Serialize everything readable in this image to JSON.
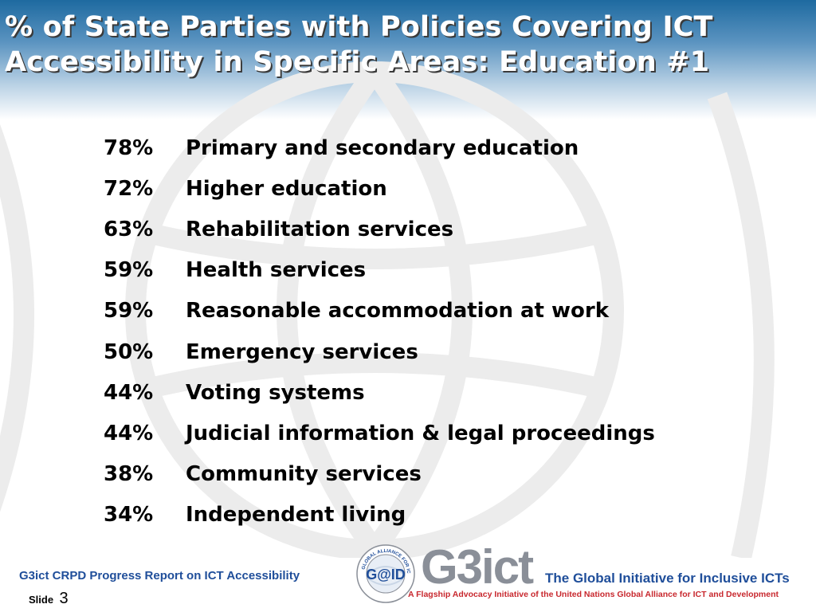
{
  "title": {
    "line1": "% of State Parties with Policies Covering ICT",
    "line2": "Accessibility in Specific Areas: Education #1"
  },
  "stats": [
    {
      "percent": "78%",
      "label": "Primary and secondary education"
    },
    {
      "percent": "72%",
      "label": "Higher education"
    },
    {
      "percent": "63%",
      "label": "Rehabilitation services"
    },
    {
      "percent": "59%",
      "label": "Health services"
    },
    {
      "percent": "59%",
      "label": "Reasonable accommodation at work"
    },
    {
      "percent": "50%",
      "label": "Emergency services"
    },
    {
      "percent": "44%",
      "label": "Voting systems"
    },
    {
      "percent": "44%",
      "label": "Judicial information & legal proceedings"
    },
    {
      "percent": "38%",
      "label": "Community services"
    },
    {
      "percent": "34%",
      "label": "Independent living"
    }
  ],
  "footer": {
    "report": "G3ict CRPD Progress Report on ICT Accessibility",
    "slide_label": "Slide",
    "slide_number": "3",
    "gaid_logo_text": "G@ID",
    "gaid_ring_text": "GLOBAL ALLIANCE FOR ICT AND DEVELOPMENT",
    "g3ict_logo_text": "G3ict",
    "tagline": "The Global Initiative for Inclusive ICTs",
    "subtagline": "A Flagship Advocacy Initiative of the United Nations Global Alliance for ICT and Development"
  },
  "colors": {
    "header_top": "#1e6aa0",
    "title_text": "#ffffff",
    "footer_blue": "#1f4e9a",
    "footer_red": "#c8282e",
    "logo_grey": "#8a8f98",
    "background_emblem": "#ececec"
  }
}
